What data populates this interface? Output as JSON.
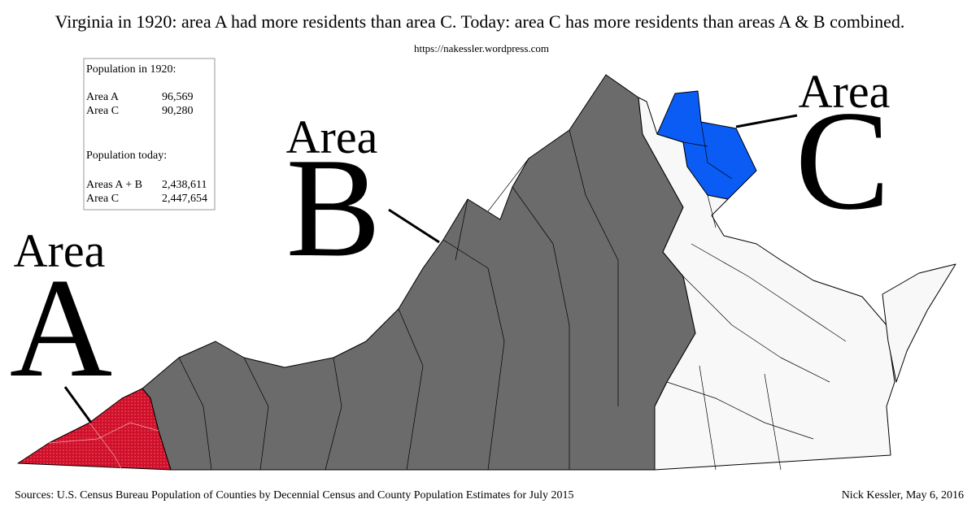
{
  "header": {
    "title": "Virginia in 1920: area A had more residents than area C. Today: area C has more residents than areas A & B combined.",
    "url": "https://nakessler.wordpress.com"
  },
  "population_box": {
    "heading_1920": "Population in 1920:",
    "rows_1920": [
      [
        "Area A",
        "96,569"
      ],
      [
        "Area C",
        "90,280"
      ]
    ],
    "heading_today": "Population today:",
    "rows_today": [
      [
        "Areas A + B",
        "2,438,611"
      ],
      [
        "Area C",
        "2,447,654"
      ]
    ]
  },
  "labels": {
    "a": {
      "word": "Area",
      "letter": "A"
    },
    "b": {
      "word": "Area",
      "letter": "B"
    },
    "c": {
      "word": "Area",
      "letter": "C"
    }
  },
  "footer": {
    "sources": "Sources: U.S. Census Bureau Population of Counties by Decennial Census and County Population Estimates for July 2015",
    "credit": "Nick Kessler, May 6, 2016"
  }
}
